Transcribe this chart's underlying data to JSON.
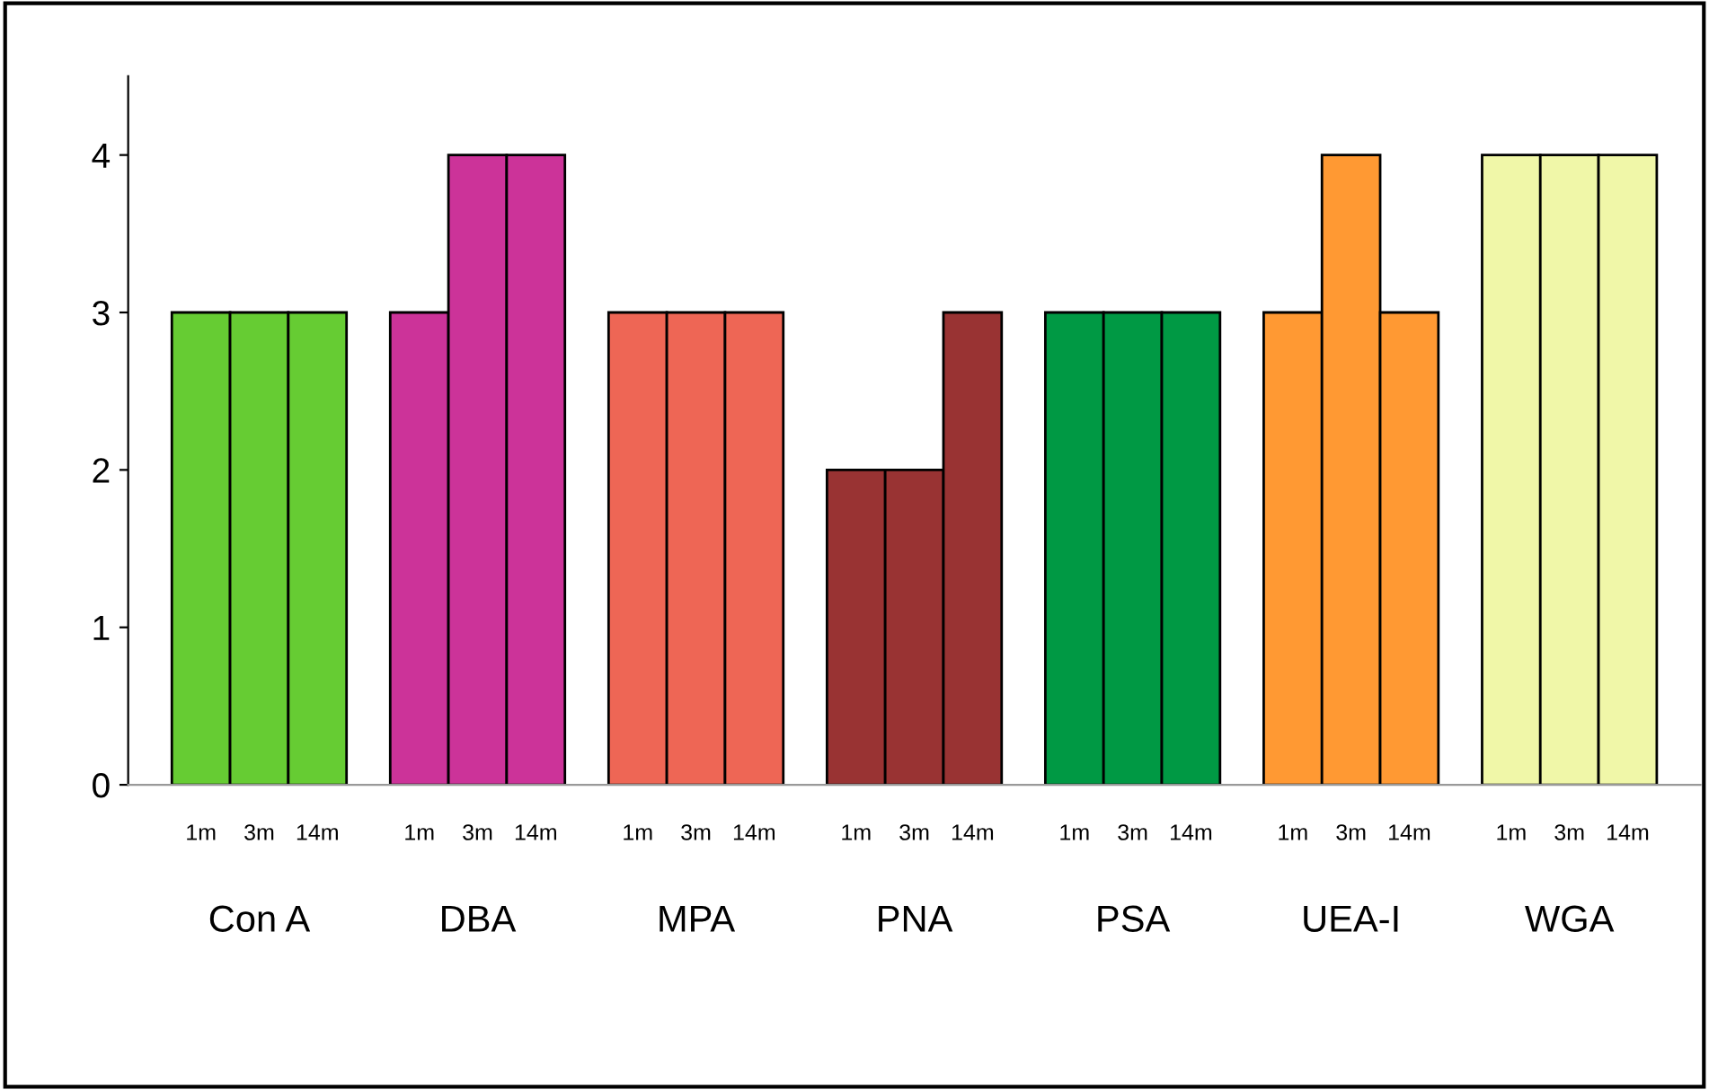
{
  "chart_data": {
    "type": "bar",
    "categories": [
      "Con A",
      "DBA",
      "MPA",
      "PNA",
      "PSA",
      "UEA-I",
      "WGA"
    ],
    "series": [
      {
        "name": "1m",
        "colors": [
          "#66cc33",
          "#cc3399",
          "#ee6655",
          "#993333",
          "#009944",
          "#ff9933",
          "#f0f7a8"
        ],
        "values": [
          3,
          3,
          3,
          2,
          3,
          3,
          4
        ]
      },
      {
        "name": "3m",
        "colors": [
          "#66cc33",
          "#cc3399",
          "#ee6655",
          "#993333",
          "#009944",
          "#ff9933",
          "#f0f7a8"
        ],
        "values": [
          3,
          4,
          3,
          2,
          3,
          4,
          4
        ]
      },
      {
        "name": "14m",
        "colors": [
          "#66cc33",
          "#cc3399",
          "#ee6655",
          "#993333",
          "#009944",
          "#ff9933",
          "#f0f7a8"
        ],
        "values": [
          3,
          4,
          3,
          3,
          3,
          3,
          4
        ]
      }
    ],
    "ylim": [
      0,
      4.5
    ],
    "yticks": [
      0,
      1,
      2,
      3,
      4
    ],
    "grid": false,
    "legend": false
  }
}
